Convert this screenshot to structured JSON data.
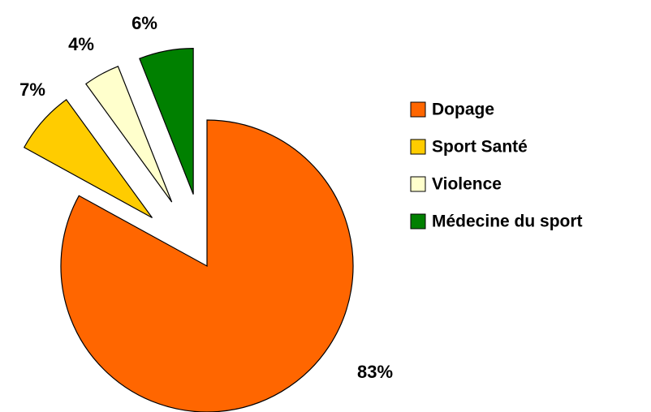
{
  "chart_data": {
    "type": "pie",
    "categories": [
      "Dopage",
      "Sport Santé",
      "Violence",
      "Médecine du sport"
    ],
    "values": [
      83,
      7,
      4,
      6
    ],
    "value_labels": [
      "83%",
      "7%",
      "4%",
      "6%"
    ],
    "colors": [
      "#ff6600",
      "#ffcc00",
      "#ffffcc",
      "#008000"
    ],
    "legend": "right"
  }
}
